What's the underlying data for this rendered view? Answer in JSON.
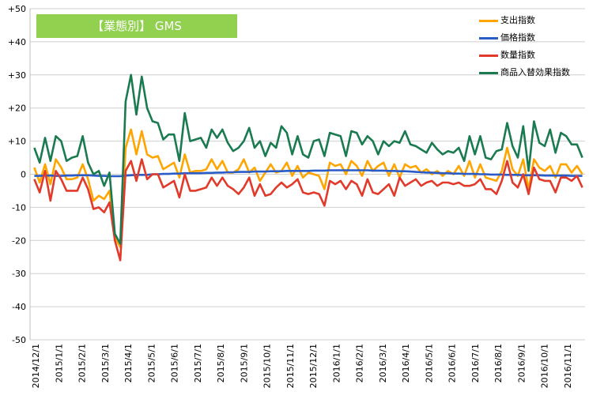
{
  "chart_data": {
    "type": "line",
    "title": "【業態別】 GMS",
    "ylim": [
      -50,
      50
    ],
    "yticks": [
      "+50",
      "+40",
      "+30",
      "+20",
      "+10",
      "0",
      "-10",
      "-20",
      "-30",
      "-40",
      "-50"
    ],
    "xticks": [
      "2014/12/1",
      "2015/1/1",
      "2015/2/1",
      "2015/3/1",
      "2015/4/1",
      "2015/5/1",
      "2015/6/1",
      "2015/7/1",
      "2015/8/1",
      "2015/9/1",
      "2015/10/1",
      "2015/11/1",
      "2015/12/1",
      "2016/1/1",
      "2016/2/1",
      "2016/3/1",
      "2016/4/1",
      "2016/5/1",
      "2016/6/1",
      "2016/7/1",
      "2016/8/1",
      "2016/9/1",
      "2016/10/1",
      "2016/11/1"
    ],
    "grid": true,
    "legend_position": "top-right",
    "x_unit": "week",
    "series": [
      {
        "name": "支出指数",
        "color": "#ffa500",
        "values": [
          2.0,
          -2.5,
          3.0,
          -3.0,
          4.5,
          2.0,
          -1.5,
          -1.5,
          -1.0,
          3.0,
          -1.5,
          -8.0,
          -6.5,
          -7.5,
          -5.0,
          -19.0,
          -22.0,
          8.0,
          13.5,
          6.0,
          13.0,
          6.0,
          5.0,
          5.5,
          1.5,
          2.5,
          3.5,
          -1.0,
          6.0,
          0.5,
          1.0,
          1.0,
          1.5,
          4.5,
          1.5,
          4.0,
          0.5,
          0.5,
          1.5,
          4.5,
          0.5,
          2.0,
          -2.0,
          0.5,
          3.0,
          0.5,
          1.0,
          3.5,
          -0.5,
          2.5,
          -1.0,
          0.5,
          0.0,
          -0.5,
          -4.5,
          3.5,
          2.5,
          3.0,
          0.0,
          4.0,
          2.5,
          -0.5,
          4.0,
          1.0,
          2.5,
          3.5,
          -0.5,
          3.0,
          -1.0,
          3.0,
          2.0,
          2.5,
          0.5,
          1.5,
          0.0,
          1.0,
          -0.5,
          1.0,
          0.0,
          2.5,
          -0.5,
          4.0,
          -1.0,
          3.0,
          -1.0,
          -1.5,
          -2.0,
          1.0,
          8.0,
          1.5,
          -0.5,
          4.5,
          -4.5,
          4.5,
          2.0,
          1.0,
          2.5,
          -1.0,
          3.0,
          3.0,
          0.5,
          2.5,
          0.0
        ],
        "ids": [
          "l1s0"
        ]
      },
      {
        "name": "価格指数",
        "color": "#2a5cc8",
        "values": [
          -0.5,
          -0.5,
          -0.4,
          -0.4,
          -0.5,
          -0.5,
          -0.4,
          -0.4,
          -0.3,
          -0.3,
          -0.3,
          -0.4,
          -0.5,
          -0.5,
          -0.6,
          -0.6,
          -0.6,
          -0.4,
          -0.3,
          -0.2,
          -0.2,
          -0.2,
          0.0,
          0.0,
          0.1,
          0.1,
          0.2,
          0.2,
          0.3,
          0.3,
          0.3,
          0.3,
          0.4,
          0.4,
          0.5,
          0.5,
          0.6,
          0.6,
          0.7,
          0.7,
          0.7,
          0.8,
          0.8,
          0.8,
          0.9,
          0.9,
          0.9,
          1.0,
          1.0,
          1.0,
          1.0,
          1.0,
          1.1,
          1.1,
          1.1,
          1.2,
          1.2,
          1.2,
          1.2,
          1.2,
          1.2,
          1.2,
          1.2,
          1.1,
          1.1,
          1.1,
          1.0,
          1.0,
          0.9,
          0.9,
          0.8,
          0.7,
          0.6,
          0.5,
          0.5,
          0.4,
          0.3,
          0.3,
          0.2,
          0.2,
          0.1,
          0.1,
          0.1,
          0.0,
          0.0,
          -0.1,
          -0.1,
          -0.1,
          -0.2,
          -0.2,
          -0.2,
          -0.3,
          -0.3,
          -0.3,
          -0.3,
          -0.4,
          -0.4,
          -0.4,
          -0.4,
          -0.4,
          -0.5,
          -0.5,
          -0.5
        ]
      },
      {
        "name": "数量指数",
        "color": "#e23a2a",
        "values": [
          -1.5,
          -5.5,
          1.0,
          -8.0,
          1.0,
          -1.5,
          -5.0,
          -5.0,
          -5.0,
          -1.0,
          -4.5,
          -10.5,
          -10.0,
          -11.5,
          -8.5,
          -20.0,
          -26.0,
          1.0,
          4.0,
          -2.0,
          4.5,
          -1.5,
          0.0,
          0.0,
          -4.0,
          -3.0,
          -2.0,
          -7.0,
          0.0,
          -5.0,
          -5.0,
          -4.5,
          -4.0,
          -1.0,
          -3.5,
          -1.0,
          -3.5,
          -4.5,
          -6.0,
          -4.0,
          -1.0,
          -6.5,
          -3.0,
          -6.5,
          -6.0,
          -4.0,
          -2.5,
          -4.0,
          -3.0,
          -1.5,
          -5.5,
          -6.0,
          -5.5,
          -6.0,
          -9.5,
          -2.0,
          -3.0,
          -2.0,
          -4.5,
          -2.0,
          -3.0,
          -6.5,
          -1.5,
          -5.5,
          -6.0,
          -4.5,
          -3.0,
          -6.5,
          -1.0,
          -3.5,
          -2.5,
          -1.5,
          -3.5,
          -2.5,
          -2.0,
          -3.5,
          -2.5,
          -2.5,
          -3.0,
          -2.5,
          -3.5,
          -3.5,
          -3.0,
          -1.5,
          -4.5,
          -4.5,
          -6.0,
          -2.0,
          4.0,
          -2.5,
          -4.0,
          0.0,
          -6.0,
          2.0,
          -1.5,
          -2.0,
          -2.0,
          -5.5,
          -1.0,
          -1.0,
          -2.0,
          -0.5,
          -4.0
        ]
      },
      {
        "name": "商品入替効果指数",
        "color": "#1a7a50",
        "values": [
          8.0,
          3.5,
          11.0,
          4.0,
          11.5,
          10.0,
          4.0,
          5.0,
          5.5,
          11.5,
          3.5,
          0.0,
          1.0,
          -3.5,
          0.5,
          -18.0,
          -21.0,
          22.0,
          30.0,
          18.0,
          29.5,
          20.0,
          16.0,
          15.5,
          10.5,
          12.0,
          12.0,
          4.0,
          18.5,
          10.0,
          10.5,
          11.0,
          8.0,
          13.5,
          11.0,
          13.5,
          9.5,
          7.0,
          8.0,
          10.0,
          14.0,
          8.0,
          10.0,
          5.5,
          9.5,
          8.0,
          14.5,
          12.5,
          6.0,
          11.5,
          6.0,
          5.0,
          10.0,
          10.5,
          5.5,
          12.5,
          12.0,
          11.5,
          5.5,
          13.0,
          12.5,
          9.0,
          11.5,
          10.0,
          6.0,
          10.0,
          8.5,
          10.0,
          9.5,
          13.0,
          9.0,
          8.5,
          7.5,
          6.5,
          9.5,
          7.5,
          6.0,
          7.0,
          6.5,
          8.0,
          4.0,
          11.5,
          6.0,
          11.5,
          5.0,
          4.5,
          7.0,
          7.5,
          15.5,
          8.5,
          5.0,
          14.5,
          1.0,
          16.0,
          9.5,
          8.5,
          13.5,
          6.5,
          12.5,
          11.5,
          9.0,
          9.0,
          5.0
        ]
      }
    ]
  }
}
